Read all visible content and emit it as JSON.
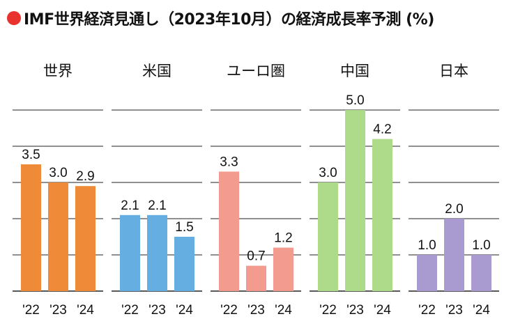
{
  "title": "IMF世界経済見通し（2023年10月）の経済成長率予測 (%)",
  "colors": {
    "title_dot": "#e8322e",
    "grid": "#222222",
    "text": "#111111"
  },
  "chart_data": {
    "type": "bar",
    "title": "IMF世界経済見通し（2023年10月）の経済成長率予測 (%)",
    "ylim": [
      0,
      5
    ],
    "grid": true,
    "groups": [
      {
        "name": "世界",
        "color": "#ee8a38",
        "categories": [
          "'22",
          "'23",
          "'24"
        ],
        "values": [
          3.5,
          3.0,
          2.9
        ],
        "labels": [
          "3.5",
          "3.0",
          "2.9"
        ]
      },
      {
        "name": "米国",
        "color": "#64aee2",
        "categories": [
          "'22",
          "'23",
          "'24"
        ],
        "values": [
          2.1,
          2.1,
          1.5
        ],
        "labels": [
          "2.1",
          "2.1",
          "1.5"
        ]
      },
      {
        "name": "ユーロ圏",
        "color": "#f39b8e",
        "categories": [
          "'22",
          "'23",
          "'24"
        ],
        "values": [
          3.3,
          0.7,
          1.2
        ],
        "labels": [
          "3.3",
          "0.7",
          "1.2"
        ]
      },
      {
        "name": "中国",
        "color": "#addb8a",
        "categories": [
          "'22",
          "'23",
          "'24"
        ],
        "values": [
          3.0,
          5.0,
          4.2
        ],
        "labels": [
          "3.0",
          "5.0",
          "4.2"
        ]
      },
      {
        "name": "日本",
        "color": "#a99bd0",
        "categories": [
          "'22",
          "'23",
          "'24"
        ],
        "values": [
          1.0,
          2.0,
          1.0
        ],
        "labels": [
          "1.0",
          "2.0",
          "1.0"
        ]
      }
    ]
  }
}
